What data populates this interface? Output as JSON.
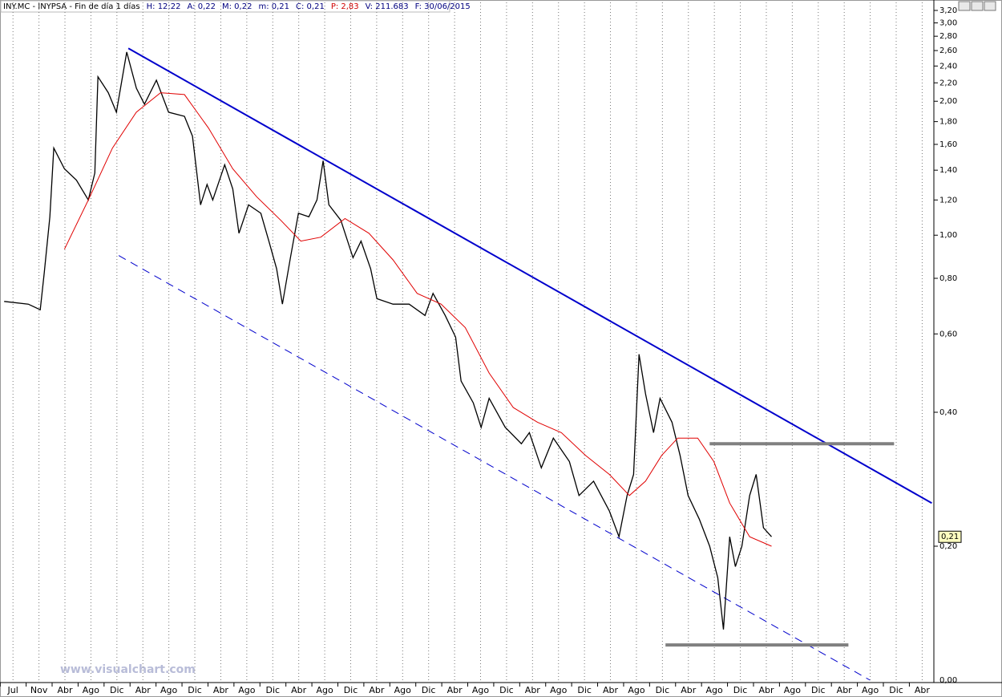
{
  "chart_data": {
    "type": "line",
    "header_items": [
      "INY.MC - INYPSA - Fin de día 1 días",
      "H: 12:22",
      "A: 0,22",
      "M: 0,22",
      "m: 0,21",
      "C: 0,21",
      "P: 2,83",
      "V: 211.683",
      "F: 30/06/2015"
    ],
    "header_colors": [
      "#000000",
      "#000080",
      "#000080",
      "#000080",
      "#000080",
      "#000080",
      "#d00000",
      "#000080",
      "#000080"
    ],
    "watermark": "www.visualchart.com",
    "categories": [
      "Jul",
      "Nov",
      "Abr",
      "Ago",
      "Dic",
      "Abr",
      "Ago",
      "Dic",
      "Abr",
      "Ago",
      "Dic",
      "Abr",
      "Ago",
      "Dic",
      "Abr",
      "Ago",
      "Dic",
      "Abr",
      "Ago",
      "Dic",
      "Abr",
      "Ago",
      "Dic",
      "Abr",
      "Ago",
      "Dic",
      "Abr",
      "Ago",
      "Dic",
      "Abr",
      "Ago",
      "Dic",
      "Abr",
      "Ago",
      "Dic",
      "Abr"
    ],
    "xlim": [
      -0.5,
      35.45
    ],
    "x_grid": true,
    "log_y": true,
    "ylim": [
      0.1,
      3.2
    ],
    "yticks": [
      {
        "value": 0.2,
        "label": "0,20"
      },
      {
        "value": 0.4,
        "label": "0,40"
      },
      {
        "value": 0.6,
        "label": "0,60"
      },
      {
        "value": 0.8,
        "label": "0,80"
      },
      {
        "value": 1.0,
        "label": "1,00"
      },
      {
        "value": 1.2,
        "label": "1,20"
      },
      {
        "value": 1.4,
        "label": "1,40"
      },
      {
        "value": 1.6,
        "label": "1,60"
      },
      {
        "value": 1.8,
        "label": "1,80"
      },
      {
        "value": 2.0,
        "label": "2,00"
      },
      {
        "value": 2.2,
        "label": "2,20"
      },
      {
        "value": 2.4,
        "label": "2,40"
      },
      {
        "value": 2.6,
        "label": "2,60"
      },
      {
        "value": 2.8,
        "label": "2,80"
      },
      {
        "value": 3.0,
        "label": "3,00"
      },
      {
        "value": 3.2,
        "label": "3,20"
      }
    ],
    "y_bottom_label": "0,00",
    "last_value": {
      "value": 0.21,
      "label": "0,21"
    },
    "series": [
      {
        "color": "#000000",
        "x": [
          -0.34,
          0.59,
          1.05,
          1.2,
          1.42,
          1.57,
          1.98,
          2.44,
          2.9,
          3.15,
          3.27,
          3.67,
          3.98,
          4.38,
          4.75,
          5.06,
          5.52,
          5.99,
          6.6,
          6.91,
          7.22,
          7.47,
          7.69,
          8.15,
          8.46,
          8.7,
          9.07,
          9.54,
          9.85,
          10.15,
          10.37,
          10.68,
          10.99,
          11.39,
          11.7,
          11.94,
          12.16,
          12.62,
          13.09,
          13.4,
          13.77,
          14.01,
          14.63,
          15.25,
          15.86,
          16.17,
          16.64,
          17.04,
          17.25,
          17.72,
          18.02,
          18.33,
          18.95,
          19.57,
          19.88,
          20.34,
          20.8,
          21.42,
          21.79,
          22.35,
          22.96,
          23.33,
          23.64,
          23.89,
          24.1,
          24.35,
          24.66,
          24.91,
          25.37,
          25.68,
          25.99,
          26.42,
          26.82,
          27.13,
          27.35,
          27.59,
          27.81,
          28.06,
          28.36,
          28.61,
          28.89,
          29.2
        ],
        "values": [
          0.71,
          0.7,
          0.68,
          0.82,
          1.1,
          1.57,
          1.41,
          1.33,
          1.2,
          1.38,
          2.27,
          2.09,
          1.89,
          2.58,
          2.14,
          1.97,
          2.23,
          1.89,
          1.85,
          1.67,
          1.17,
          1.3,
          1.2,
          1.44,
          1.27,
          1.01,
          1.17,
          1.12,
          0.97,
          0.84,
          0.7,
          0.89,
          1.12,
          1.1,
          1.2,
          1.47,
          1.17,
          1.08,
          0.89,
          0.97,
          0.84,
          0.72,
          0.7,
          0.7,
          0.66,
          0.74,
          0.66,
          0.59,
          0.47,
          0.42,
          0.37,
          0.43,
          0.37,
          0.34,
          0.36,
          0.3,
          0.35,
          0.31,
          0.26,
          0.28,
          0.24,
          0.21,
          0.26,
          0.29,
          0.54,
          0.44,
          0.36,
          0.43,
          0.38,
          0.32,
          0.26,
          0.23,
          0.2,
          0.17,
          0.13,
          0.21,
          0.18,
          0.2,
          0.26,
          0.29,
          0.22,
          0.21
        ]
      },
      {
        "color": "#e00000",
        "x": [
          1.98,
          2.9,
          3.83,
          4.75,
          5.68,
          6.6,
          7.53,
          8.46,
          9.38,
          10.31,
          11.08,
          11.85,
          12.78,
          13.7,
          14.63,
          15.56,
          16.48,
          17.41,
          18.33,
          19.26,
          20.19,
          21.11,
          22.04,
          22.96,
          23.73,
          24.35,
          24.97,
          25.59,
          26.36,
          26.98,
          27.59,
          28.36,
          29.2
        ],
        "values": [
          0.93,
          1.2,
          1.57,
          1.89,
          2.09,
          2.07,
          1.74,
          1.41,
          1.22,
          1.08,
          0.97,
          0.99,
          1.09,
          1.01,
          0.88,
          0.74,
          0.7,
          0.62,
          0.49,
          0.41,
          0.38,
          0.36,
          0.32,
          0.29,
          0.26,
          0.28,
          0.32,
          0.35,
          0.35,
          0.31,
          0.25,
          0.21,
          0.2
        ]
      }
    ],
    "trendlines": [
      {
        "color": "#0000cc",
        "style": "solid",
        "x": [
          4.44,
          35.37
        ],
        "values": [
          2.63,
          0.25
        ]
      },
      {
        "color": "#0000cc",
        "style": "dashed",
        "x": [
          4.07,
          32.99
        ],
        "values": [
          0.9,
          0.1
        ]
      },
      {
        "color": "#808080",
        "style": "thick",
        "x": [
          26.82,
          33.92
        ],
        "values": [
          0.34,
          0.34
        ]
      },
      {
        "color": "#808080",
        "style": "thick",
        "x": [
          25.12,
          32.16
        ],
        "values": [
          0.12,
          0.12
        ]
      }
    ]
  }
}
